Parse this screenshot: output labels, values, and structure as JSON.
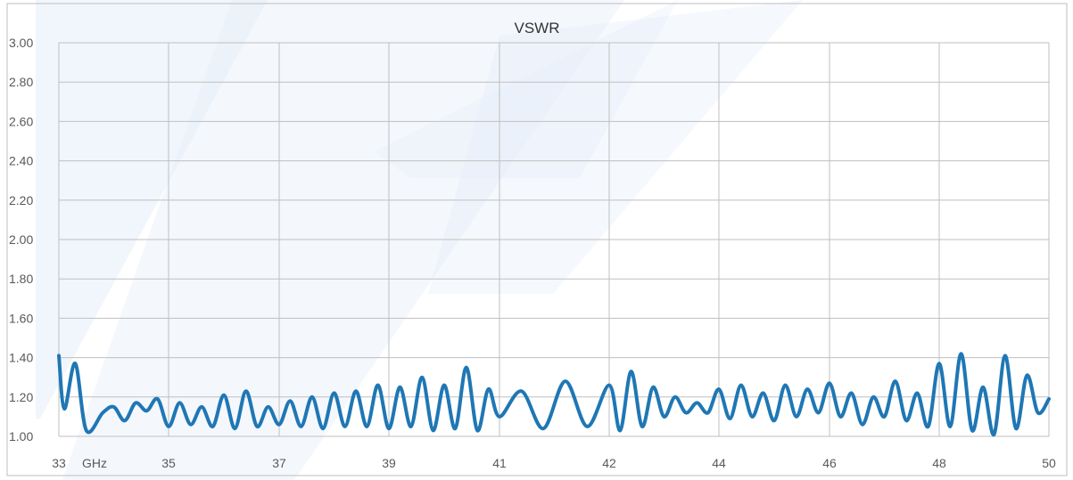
{
  "chart_data": {
    "type": "line",
    "title": "VSWR",
    "xlabel": "",
    "ylabel": "",
    "x_tick_labels": [
      "33",
      "35",
      "37",
      "39",
      "41",
      "42",
      "44",
      "46",
      "48",
      "50"
    ],
    "x_unit_label": "GHz",
    "y_tick_labels": [
      "1.00",
      "1.20",
      "1.40",
      "1.60",
      "1.80",
      "2.00",
      "2.20",
      "2.40",
      "2.60",
      "2.80",
      "3.00"
    ],
    "xlim": [
      33,
      50
    ],
    "ylim": [
      1.0,
      3.0
    ],
    "grid": true,
    "legend": "none",
    "series": [
      {
        "color": "#1f77b4",
        "x": [
          33.0,
          33.1,
          33.3,
          33.5,
          33.8,
          34.0,
          34.2,
          34.4,
          34.6,
          34.8,
          35.0,
          35.2,
          35.4,
          35.6,
          35.8,
          36.0,
          36.2,
          36.4,
          36.6,
          36.8,
          37.0,
          37.2,
          37.4,
          37.6,
          37.8,
          38.0,
          38.2,
          38.4,
          38.6,
          38.8,
          39.0,
          39.2,
          39.4,
          39.6,
          39.8,
          40.0,
          40.2,
          40.4,
          40.6,
          40.8,
          41.0,
          41.2,
          41.4,
          41.6,
          41.8,
          42.0,
          42.2,
          42.4,
          42.6,
          42.8,
          43.0,
          43.2,
          43.4,
          43.6,
          43.8,
          44.0,
          44.2,
          44.4,
          44.6,
          44.8,
          45.0,
          45.2,
          45.4,
          45.6,
          45.8,
          46.0,
          46.2,
          46.4,
          46.6,
          46.8,
          47.0,
          47.2,
          47.4,
          47.6,
          47.8,
          48.0,
          48.2,
          48.4,
          48.6,
          48.8,
          49.0,
          49.2,
          49.4,
          49.6,
          49.8,
          50.0
        ],
        "y": [
          1.41,
          1.14,
          1.37,
          1.03,
          1.12,
          1.15,
          1.08,
          1.17,
          1.13,
          1.19,
          1.05,
          1.17,
          1.06,
          1.15,
          1.05,
          1.21,
          1.04,
          1.23,
          1.05,
          1.15,
          1.06,
          1.18,
          1.05,
          1.2,
          1.04,
          1.22,
          1.05,
          1.23,
          1.05,
          1.26,
          1.04,
          1.25,
          1.05,
          1.3,
          1.03,
          1.26,
          1.04,
          1.35,
          1.03,
          1.24,
          1.1,
          1.23,
          1.04,
          1.28,
          1.05,
          1.26,
          1.03,
          1.33,
          1.05,
          1.25,
          1.1,
          1.2,
          1.12,
          1.17,
          1.12,
          1.24,
          1.09,
          1.26,
          1.1,
          1.22,
          1.08,
          1.26,
          1.1,
          1.24,
          1.12,
          1.27,
          1.1,
          1.22,
          1.06,
          1.2,
          1.1,
          1.28,
          1.08,
          1.22,
          1.05,
          1.37,
          1.05,
          1.42,
          1.03,
          1.25,
          1.01,
          1.41,
          1.04,
          1.31,
          1.12,
          1.19
        ]
      }
    ]
  }
}
